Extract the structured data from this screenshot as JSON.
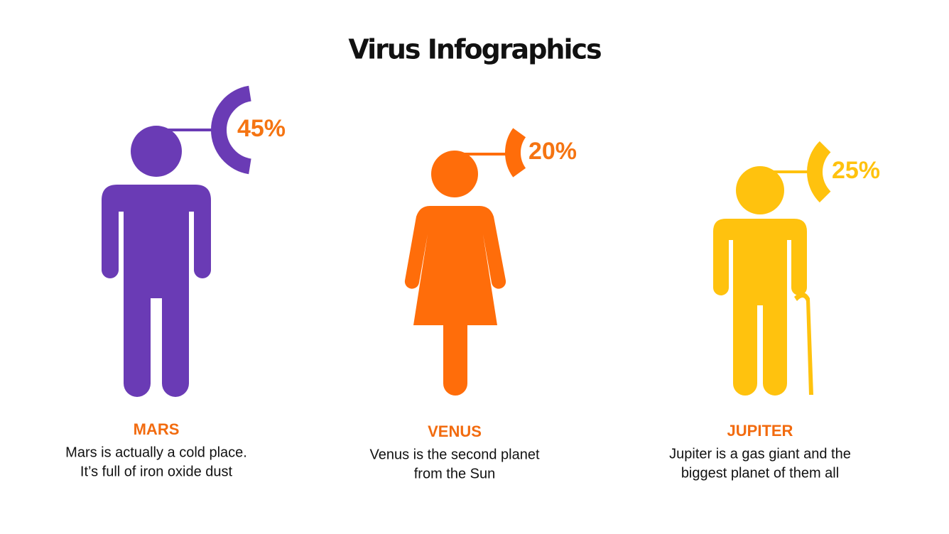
{
  "chart_data": {
    "type": "gauge",
    "title": "Virus Infographics",
    "categories": [
      "MARS",
      "VENUS",
      "JUPITER"
    ],
    "values": [
      45,
      20,
      25
    ],
    "value_labels": [
      "45%",
      "20%",
      "25%"
    ],
    "colors": [
      "#6a3bb5",
      "#ff6d0a",
      "#ffc20e"
    ],
    "label_colors": [
      "#f57412",
      "#f57412",
      "#ffc20e"
    ],
    "name_color": "#f26b0f",
    "descriptions": [
      [
        "Mars is actually a cold place.",
        "It’s full of iron oxide dust"
      ],
      [
        "Venus is the second planet",
        "from the Sun"
      ],
      [
        "Jupiter is a gas giant and the",
        "biggest planet of them all"
      ]
    ]
  }
}
